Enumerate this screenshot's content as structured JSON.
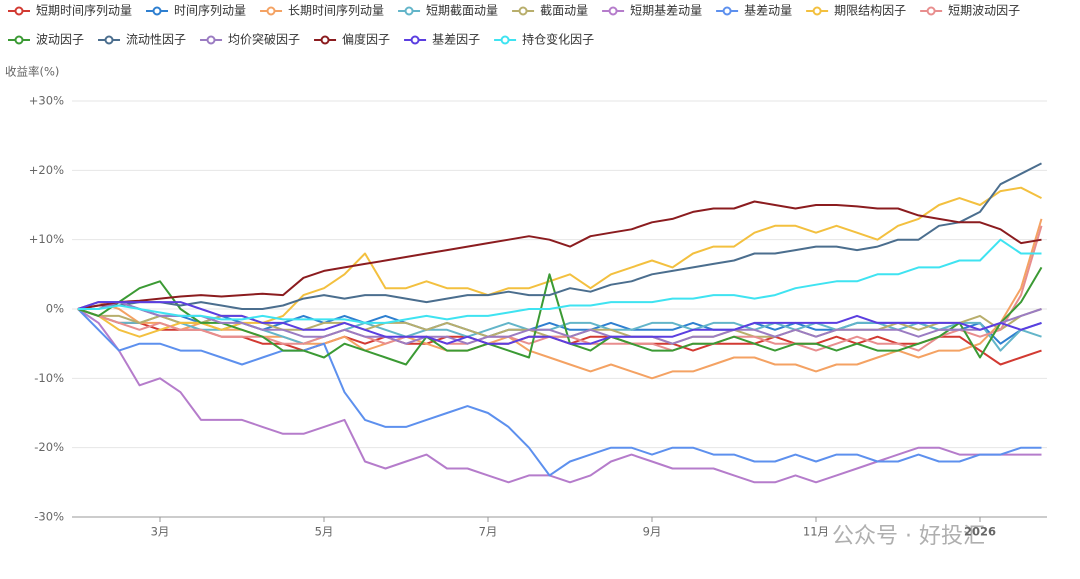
{
  "chart_data": {
    "type": "line",
    "y_axis_title": "收益率(%)",
    "watermark": "公众号 · 好投汇",
    "categories": [
      null,
      null,
      null,
      null,
      "3月",
      null,
      null,
      null,
      null,
      null,
      null,
      null,
      "5月",
      null,
      null,
      null,
      null,
      null,
      null,
      null,
      "7月",
      null,
      null,
      null,
      null,
      null,
      null,
      null,
      "9月",
      null,
      null,
      null,
      null,
      null,
      null,
      null,
      "11月",
      null,
      null,
      null,
      null,
      null,
      null,
      null,
      "2026",
      null,
      null,
      null
    ],
    "ylim": [
      -30,
      30
    ],
    "yticks": [
      {
        "value": -30,
        "label": "-30%"
      },
      {
        "value": -20,
        "label": "-20%"
      },
      {
        "value": -10,
        "label": "-10%"
      },
      {
        "value": 0,
        "label": "0%"
      },
      {
        "value": 10,
        "label": "+10%"
      },
      {
        "value": 20,
        "label": "+20%"
      },
      {
        "value": 30,
        "label": "+30%"
      }
    ],
    "grid": true,
    "series": [
      {
        "name": "短期时间序列动量",
        "color": "#d23a32",
        "values": [
          0,
          -1,
          -2,
          -2,
          -3,
          -3,
          -3,
          -4,
          -4,
          -5,
          -5,
          -6,
          -5,
          -4,
          -5,
          -4,
          -5,
          -5,
          -4,
          -4,
          -5,
          -5,
          -4,
          -4,
          -5,
          -4,
          -4,
          -5,
          -5,
          -5,
          -6,
          -5,
          -5,
          -5,
          -4,
          -5,
          -5,
          -4,
          -5,
          -4,
          -5,
          -5,
          -4,
          -4,
          -6,
          -8,
          -7,
          -6
        ]
      },
      {
        "name": "时间序列动量",
        "color": "#2e7fd0",
        "values": [
          0,
          1,
          1,
          0,
          -1,
          -1,
          -2,
          -1,
          -2,
          -3,
          -2,
          -1,
          -2,
          -1,
          -2,
          -1,
          -2,
          -3,
          -2,
          -3,
          -4,
          -3,
          -3,
          -2,
          -3,
          -3,
          -2,
          -3,
          -3,
          -3,
          -2,
          -3,
          -3,
          -2,
          -3,
          -2,
          -3,
          -3,
          -2,
          -2,
          -2,
          -2,
          -3,
          -3,
          -2,
          -5,
          -3,
          -2
        ]
      },
      {
        "name": "长期时间序列动量",
        "color": "#f4a263",
        "values": [
          0,
          1,
          0,
          -2,
          -2,
          -3,
          -2,
          -3,
          -3,
          -4,
          -4,
          -5,
          -5,
          -4,
          -6,
          -5,
          -4,
          -5,
          -6,
          -6,
          -5,
          -4,
          -6,
          -7,
          -8,
          -9,
          -8,
          -9,
          -10,
          -9,
          -9,
          -8,
          -7,
          -7,
          -8,
          -8,
          -9,
          -8,
          -8,
          -7,
          -6,
          -7,
          -6,
          -6,
          -5,
          -2,
          3,
          13
        ]
      },
      {
        "name": "短期截面动量",
        "color": "#63b5c9",
        "values": [
          0,
          -1,
          -2,
          -2,
          -1,
          -2,
          -3,
          -3,
          -2,
          -3,
          -4,
          -5,
          -4,
          -3,
          -2,
          -3,
          -4,
          -3,
          -3,
          -4,
          -3,
          -2,
          -3,
          -3,
          -2,
          -2,
          -3,
          -3,
          -2,
          -2,
          -3,
          -2,
          -2,
          -3,
          -2,
          -3,
          -2,
          -3,
          -2,
          -2,
          -3,
          -2,
          -3,
          -2,
          -2,
          -6,
          -3,
          -4
        ]
      },
      {
        "name": "截面动量",
        "color": "#b8ae6c",
        "values": [
          0,
          -1,
          -1,
          -2,
          -1,
          -2,
          -2,
          -1,
          -1,
          -2,
          -3,
          -3,
          -2,
          -2,
          -3,
          -2,
          -2,
          -3,
          -2,
          -3,
          -4,
          -3,
          -3,
          -4,
          -4,
          -3,
          -3,
          -4,
          -4,
          -5,
          -4,
          -4,
          -3,
          -4,
          -4,
          -3,
          -4,
          -3,
          -3,
          -3,
          -2,
          -3,
          -2,
          -2,
          -1,
          -3,
          -1,
          0
        ]
      },
      {
        "name": "短期基差动量",
        "color": "#b57ccb",
        "values": [
          0,
          -2,
          -6,
          -11,
          -10,
          -12,
          -16,
          -16,
          -16,
          -17,
          -18,
          -18,
          -17,
          -16,
          -22,
          -23,
          -22,
          -21,
          -23,
          -23,
          -24,
          -25,
          -24,
          -24,
          -25,
          -24,
          -22,
          -21,
          -22,
          -23,
          -23,
          -23,
          -24,
          -25,
          -25,
          -24,
          -25,
          -24,
          -23,
          -22,
          -21,
          -20,
          -20,
          -21,
          -21,
          -21,
          -21,
          -21
        ]
      },
      {
        "name": "基差动量",
        "color": "#5d90ee",
        "values": [
          0,
          -3,
          -6,
          -5,
          -5,
          -6,
          -6,
          -7,
          -8,
          -7,
          -6,
          -6,
          -5,
          -12,
          -16,
          -17,
          -17,
          -16,
          -15,
          -14,
          -15,
          -17,
          -20,
          -24,
          -22,
          -21,
          -20,
          -20,
          -21,
          -20,
          -20,
          -21,
          -21,
          -22,
          -22,
          -21,
          -22,
          -21,
          -21,
          -22,
          -22,
          -21,
          -22,
          -22,
          -21,
          -21,
          -20,
          -20
        ]
      },
      {
        "name": "期限结构因子",
        "color": "#f3c03f",
        "values": [
          0,
          -1,
          -3,
          -4,
          -3,
          -2,
          -2,
          -3,
          -2,
          -2,
          -1,
          2,
          3,
          5,
          8,
          3,
          3,
          4,
          3,
          3,
          2,
          3,
          3,
          4,
          5,
          3,
          5,
          6,
          7,
          6,
          8,
          9,
          9,
          11,
          12,
          12,
          11,
          12,
          11,
          10,
          12,
          13,
          15,
          16,
          15,
          17,
          17.5,
          16
        ]
      },
      {
        "name": "短期波动因子",
        "color": "#e88e8e",
        "values": [
          0,
          -1,
          -2,
          -3,
          -2,
          -3,
          -3,
          -4,
          -4,
          -4,
          -5,
          -5,
          -4,
          -3,
          -4,
          -5,
          -4,
          -4,
          -5,
          -5,
          -4,
          -4,
          -5,
          -4,
          -4,
          -5,
          -5,
          -5,
          -5,
          -6,
          -5,
          -5,
          -4,
          -4,
          -5,
          -5,
          -6,
          -5,
          -4,
          -5,
          -5,
          -6,
          -4,
          -3,
          -4,
          -3,
          2,
          12
        ]
      },
      {
        "name": "波动因子",
        "color": "#3b9a34",
        "values": [
          0,
          -1,
          1,
          3,
          4,
          0,
          -2,
          -2,
          -3,
          -4,
          -6,
          -6,
          -7,
          -5,
          -6,
          -7,
          -8,
          -4,
          -6,
          -6,
          -5,
          -6,
          -7,
          5,
          -5,
          -6,
          -4,
          -5,
          -6,
          -6,
          -5,
          -5,
          -4,
          -5,
          -6,
          -5,
          -5,
          -6,
          -5,
          -6,
          -6,
          -5,
          -4,
          -2,
          -7,
          -2,
          1,
          6
        ]
      },
      {
        "name": "流动性因子",
        "color": "#4b6e8e",
        "values": [
          0,
          0.5,
          0.5,
          1,
          1,
          0.5,
          1,
          0.5,
          0,
          0,
          0.5,
          1.5,
          2,
          1.5,
          2,
          2,
          1.5,
          1,
          1.5,
          2,
          2,
          2.5,
          2,
          2,
          3,
          2.5,
          3.5,
          4,
          5,
          5.5,
          6,
          6.5,
          7,
          8,
          8,
          8.5,
          9,
          9,
          8.5,
          9,
          10,
          10,
          12,
          12.5,
          14,
          18,
          19.5,
          21
        ]
      },
      {
        "name": "均价突破因子",
        "color": "#9b7cc2",
        "values": [
          0,
          0,
          1,
          0,
          -1,
          -1,
          -1,
          -2,
          -2,
          -3,
          -3,
          -4,
          -4,
          -3,
          -4,
          -4,
          -5,
          -4,
          -4,
          -5,
          -4,
          -4,
          -3,
          -3,
          -4,
          -3,
          -4,
          -4,
          -4,
          -5,
          -4,
          -4,
          -3,
          -3,
          -4,
          -3,
          -4,
          -3,
          -3,
          -3,
          -3,
          -4,
          -3,
          -3,
          -3,
          -2,
          -1,
          0
        ]
      },
      {
        "name": "偏度因子",
        "color": "#8b1c1f",
        "values": [
          0,
          0.5,
          1,
          1.2,
          1.5,
          1.8,
          2,
          1.8,
          2,
          2.2,
          2,
          4.5,
          5.5,
          6,
          6.5,
          7,
          7.5,
          8,
          8.5,
          9,
          9.5,
          10,
          10.5,
          10,
          9,
          10.5,
          11,
          11.5,
          12.5,
          13,
          14,
          14.5,
          14.5,
          15.5,
          15,
          14.5,
          15,
          15,
          14.8,
          14.5,
          14.5,
          13.5,
          13,
          12.5,
          12.5,
          11.5,
          9.5,
          10
        ]
      },
      {
        "name": "基差因子",
        "color": "#5b3ee0",
        "values": [
          0,
          1,
          1,
          1,
          1,
          1,
          0,
          -1,
          -1,
          -2,
          -2,
          -3,
          -3,
          -2,
          -3,
          -4,
          -4,
          -4,
          -5,
          -4,
          -5,
          -5,
          -4,
          -4,
          -5,
          -5,
          -4,
          -4,
          -4,
          -4,
          -3,
          -3,
          -3,
          -2,
          -2,
          -2,
          -2,
          -2,
          -1,
          -2,
          -2,
          -2,
          -2,
          -2,
          -3,
          -2,
          -3,
          -2
        ]
      },
      {
        "name": "持仓变化因子",
        "color": "#3fe3f1",
        "values": [
          0,
          0,
          0.5,
          0,
          -0.5,
          -1,
          -1,
          -1.5,
          -1.5,
          -1,
          -1.5,
          -1.5,
          -1.5,
          -1.5,
          -2,
          -2,
          -1.5,
          -1,
          -1.5,
          -1,
          -1,
          -0.5,
          0,
          0,
          0.5,
          0.5,
          1,
          1,
          1,
          1.5,
          1.5,
          2,
          2,
          1.5,
          2,
          3,
          3.5,
          4,
          4,
          5,
          5,
          6,
          6,
          7,
          7,
          10,
          8,
          8
        ]
      }
    ]
  }
}
